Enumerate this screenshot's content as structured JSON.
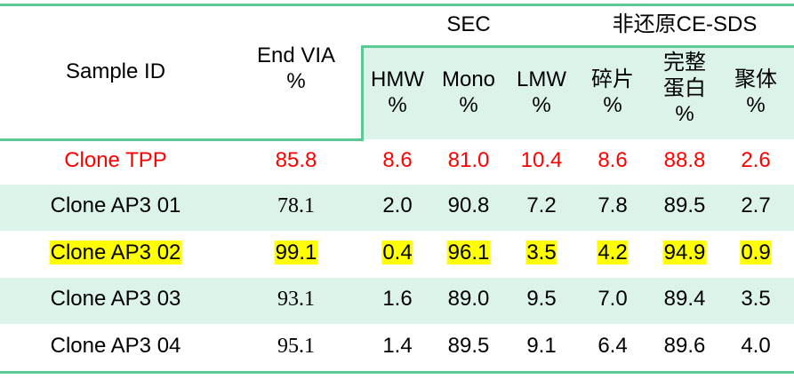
{
  "header": {
    "sample_id": "Sample ID",
    "end_via": [
      "End VIA",
      "%"
    ],
    "sec": "SEC",
    "ce_sds": "非还原CE-SDS",
    "subcols": [
      [
        "HMW",
        "%"
      ],
      [
        "Mono",
        "%"
      ],
      [
        "LMW",
        "%"
      ],
      [
        "碎片",
        "%"
      ],
      [
        "完整",
        "蛋白",
        "%"
      ],
      [
        "聚体",
        "%"
      ]
    ]
  },
  "rows": [
    {
      "id": "Clone TPP",
      "style": "red",
      "values": [
        "85.8",
        "8.6",
        "81.0",
        "10.4",
        "8.6",
        "88.8",
        "2.6"
      ]
    },
    {
      "id": "Clone AP3 01",
      "style": "normal",
      "values": [
        "78.1",
        "2.0",
        "90.8",
        "7.2",
        "7.8",
        "89.5",
        "2.7"
      ]
    },
    {
      "id": "Clone AP3 02",
      "style": "highlight",
      "values": [
        "99.1",
        "0.4",
        "96.1",
        "3.5",
        "4.2",
        "94.9",
        "0.9"
      ]
    },
    {
      "id": "Clone AP3 03",
      "style": "normal",
      "values": [
        "93.1",
        "1.6",
        "89.0",
        "9.5",
        "7.0",
        "89.4",
        "3.5"
      ]
    },
    {
      "id": "Clone AP3 04",
      "style": "normal",
      "values": [
        "95.1",
        "1.4",
        "89.5",
        "9.1",
        "6.4",
        "89.6",
        "4.0"
      ]
    }
  ],
  "colors": {
    "rule": "#5cc994",
    "band": "#dcf3ea",
    "red": "#ff0000",
    "highlight": "#ffff00"
  }
}
